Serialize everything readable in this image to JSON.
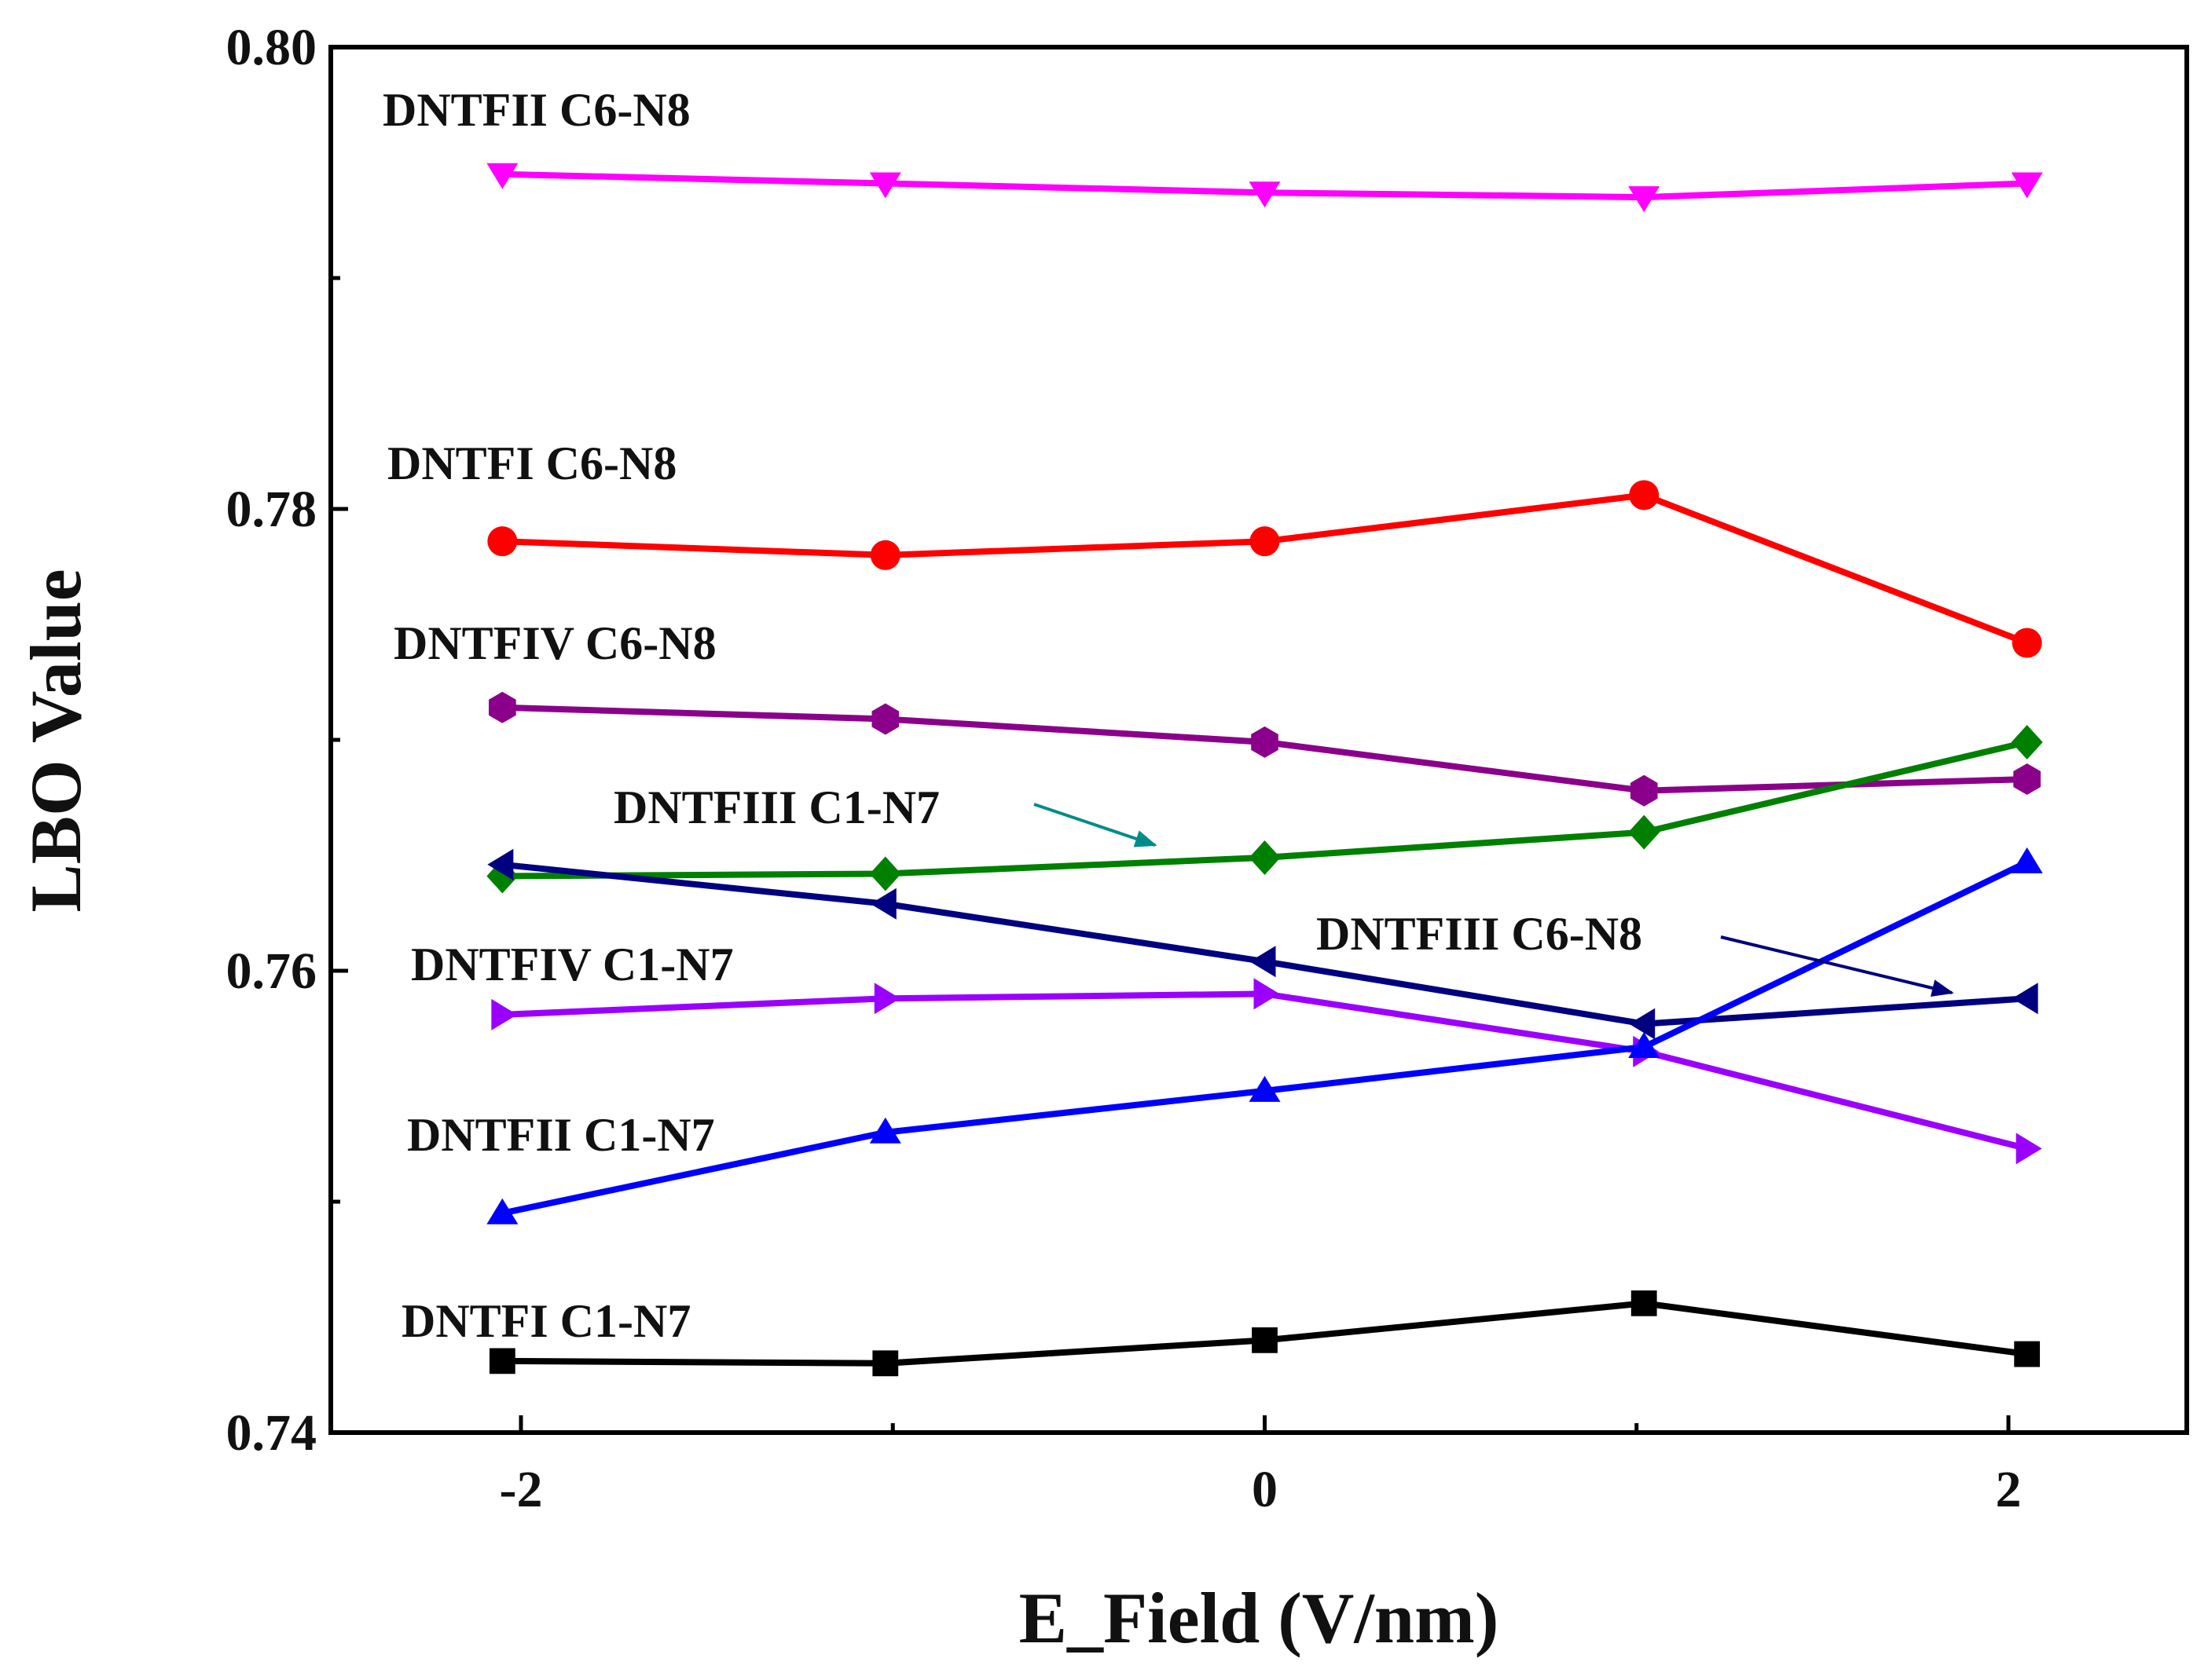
{
  "chart_data": {
    "type": "line",
    "title": "",
    "xlabel": "E_Field (V/nm)",
    "ylabel": "LBO Value",
    "xlim": [
      -2.5,
      2.5
    ],
    "ylim": [
      0.74,
      0.8
    ],
    "xticks": [
      -2,
      0,
      2
    ],
    "xtick_labels": [
      "-2",
      "0",
      "2"
    ],
    "yticks": [
      0.74,
      0.76,
      0.78,
      0.8
    ],
    "ytick_labels": [
      "0.74",
      "0.76",
      "0.78",
      "0.80"
    ],
    "yminor_ticks": [
      0.75,
      0.77,
      0.79
    ],
    "grid": false,
    "x": [
      -2.05,
      -1.02,
      0.0,
      1.02,
      2.05
    ],
    "series": [
      {
        "name": "DNTFII C6-N8",
        "label": "DNTFII C6-N8",
        "color": "#ff00ff",
        "marker": "triangle-down",
        "values": [
          0.7945,
          0.7941,
          0.7937,
          0.7935,
          0.7941
        ]
      },
      {
        "name": "DNTFI C6-N8",
        "label": "DNTFI C6-N8",
        "color": "#ff0000",
        "marker": "circle",
        "values": [
          0.7786,
          0.778,
          0.7786,
          0.7806,
          0.7742
        ]
      },
      {
        "name": "DNTFIV C6-N8",
        "label": "DNTFIV C6-N8",
        "color": "#8b008b",
        "marker": "hexagon",
        "values": [
          0.7714,
          0.7709,
          0.7699,
          0.7678,
          0.7683
        ]
      },
      {
        "name": "DNTFIII C1-N7",
        "label": "DNTFIII C1-N7",
        "color": "#008000",
        "marker": "diamond",
        "values": [
          0.7641,
          0.7642,
          0.7649,
          0.766,
          0.7699
        ]
      },
      {
        "name": "DNTFIII C6-N8",
        "label": "DNTFIII C6-N8",
        "color": "#000080",
        "marker": "triangle-left",
        "values": [
          0.7646,
          0.7629,
          0.7604,
          0.7577,
          0.7588
        ]
      },
      {
        "name": "DNTFIV C1-N7",
        "label": "DNTFIV C1-N7",
        "color": "#9b00ff",
        "marker": "triangle-right",
        "values": [
          0.7581,
          0.7588,
          0.759,
          0.7565,
          0.7523
        ]
      },
      {
        "name": "DNTFII C1-N7",
        "label": "DNTFII C1-N7",
        "color": "#0000ff",
        "marker": "triangle-up",
        "values": [
          0.7495,
          0.753,
          0.7548,
          0.7567,
          0.7647
        ]
      },
      {
        "name": "DNTFI C1-N7",
        "label": "DNTFI C1-N7",
        "color": "#000000",
        "marker": "square",
        "values": [
          0.7431,
          0.743,
          0.744,
          0.7456,
          0.7434
        ]
      }
    ],
    "annotations": [
      {
        "text": "DNTFIII C1-N7",
        "arrow_color": "#008b8b",
        "points_to": "DNTFIII C1-N7"
      },
      {
        "text": "DNTFIII C6-N8",
        "arrow_color": "#000080",
        "points_to": "DNTFIII C6-N8"
      }
    ]
  }
}
